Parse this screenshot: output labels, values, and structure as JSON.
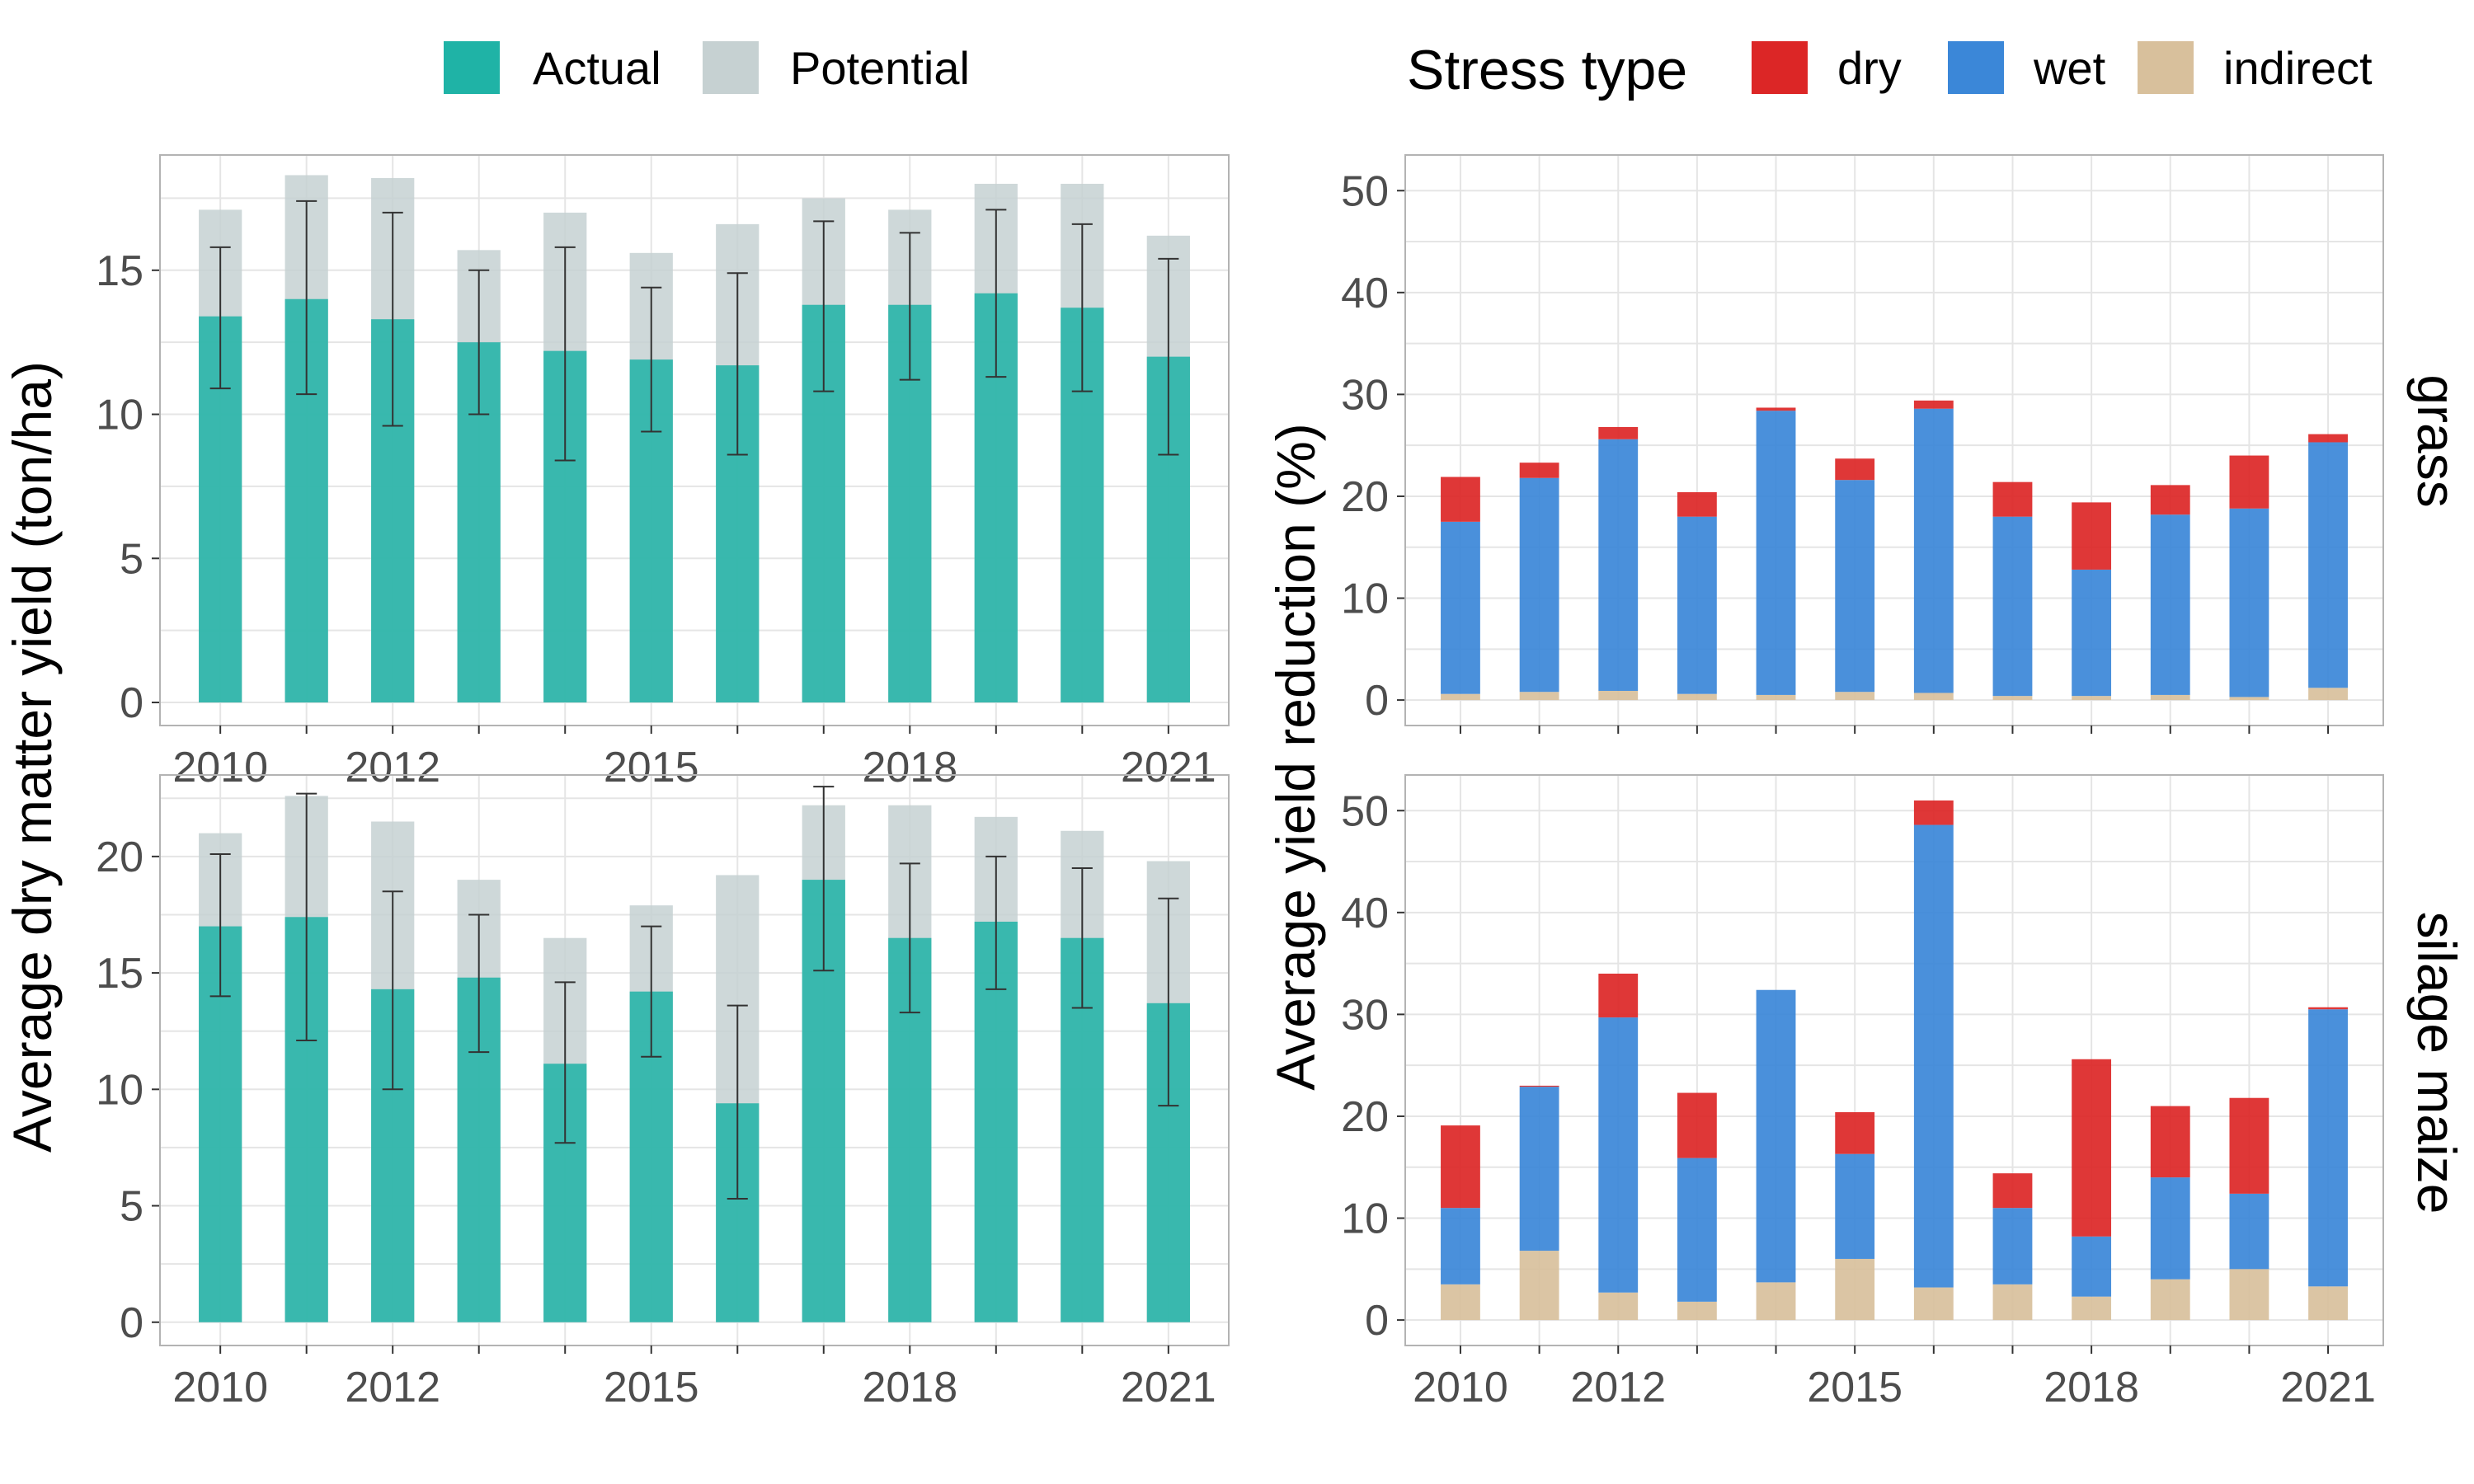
{
  "colors": {
    "actual": "#1fb3a6",
    "potential": "#c6d1d2",
    "dry": "#dc2626",
    "wet": "#3b87d8",
    "indirect": "#d8c09c"
  },
  "legend_left": {
    "actual": "Actual",
    "potential": "Potential"
  },
  "legend_right": {
    "title": "Stress type",
    "dry": "dry",
    "wet": "wet",
    "indirect": "indirect"
  },
  "chart_data": [
    {
      "type": "bar",
      "id": "grass-yield",
      "ylabel": "Average dry matter yield (ton/ha)",
      "x": [
        2010,
        2011,
        2012,
        2013,
        2014,
        2015,
        2016,
        2017,
        2018,
        2019,
        2020,
        2021
      ],
      "x_ticks": [
        "2010",
        "2012",
        "2015",
        "2018",
        "2021"
      ],
      "ylim": [
        -0.8,
        19
      ],
      "y_ticks": [
        "0",
        "5",
        "10",
        "15"
      ],
      "series": [
        {
          "name": "Actual",
          "values": [
            13.4,
            14.0,
            13.3,
            12.5,
            12.2,
            11.9,
            11.7,
            13.8,
            13.8,
            14.2,
            13.7,
            12.0
          ],
          "error_low": [
            10.9,
            10.7,
            9.6,
            10.0,
            8.4,
            9.4,
            8.6,
            10.8,
            11.2,
            11.3,
            10.8,
            8.6
          ],
          "error_high": [
            15.8,
            17.4,
            17.0,
            15.0,
            15.8,
            14.4,
            14.9,
            16.7,
            16.3,
            17.1,
            16.6,
            15.4
          ]
        },
        {
          "name": "Potential",
          "values": [
            17.1,
            18.3,
            18.2,
            15.7,
            17.0,
            15.6,
            16.6,
            17.5,
            17.1,
            18.0,
            18.0,
            16.2
          ]
        }
      ]
    },
    {
      "type": "bar",
      "id": "maize-yield",
      "ylabel": "Average dry matter yield (ton/ha)",
      "x": [
        2010,
        2011,
        2012,
        2013,
        2014,
        2015,
        2016,
        2017,
        2018,
        2019,
        2020,
        2021
      ],
      "x_ticks": [
        "2010",
        "2012",
        "2015",
        "2018",
        "2021"
      ],
      "ylim": [
        -1.0,
        23.5
      ],
      "y_ticks": [
        "0",
        "5",
        "10",
        "15",
        "20"
      ],
      "series": [
        {
          "name": "Actual",
          "values": [
            17.0,
            17.4,
            14.3,
            14.8,
            11.1,
            14.2,
            9.4,
            19.0,
            16.5,
            17.2,
            16.5,
            13.7
          ],
          "error_low": [
            14.0,
            12.1,
            10.0,
            11.6,
            7.7,
            11.4,
            5.3,
            15.1,
            13.3,
            14.3,
            13.5,
            9.3
          ],
          "error_high": [
            20.1,
            22.7,
            18.5,
            17.5,
            14.6,
            17.0,
            13.6,
            23.0,
            19.7,
            20.0,
            19.5,
            18.2
          ]
        },
        {
          "name": "Potential",
          "values": [
            21.0,
            22.6,
            21.5,
            19.0,
            16.5,
            17.9,
            19.2,
            22.2,
            22.2,
            21.7,
            21.1,
            19.8
          ]
        }
      ]
    },
    {
      "type": "bar",
      "id": "grass-reduction",
      "stacked": true,
      "facet": "grass",
      "ylabel": "Average yield reduction (%)",
      "x": [
        2010,
        2011,
        2012,
        2013,
        2014,
        2015,
        2016,
        2017,
        2018,
        2019,
        2020,
        2021
      ],
      "x_ticks": [
        "2010",
        "2012",
        "2015",
        "2018",
        "2021"
      ],
      "ylim": [
        -2.5,
        53.5
      ],
      "y_ticks": [
        "0",
        "10",
        "20",
        "30",
        "40",
        "50"
      ],
      "series": [
        {
          "name": "indirect",
          "values": [
            0.6,
            0.8,
            0.9,
            0.6,
            0.5,
            0.8,
            0.7,
            0.4,
            0.4,
            0.5,
            0.3,
            1.2
          ]
        },
        {
          "name": "wet",
          "values": [
            16.9,
            21.0,
            24.7,
            17.4,
            27.9,
            20.8,
            27.9,
            17.6,
            12.4,
            17.7,
            18.5,
            24.1
          ]
        },
        {
          "name": "dry",
          "values": [
            4.4,
            1.5,
            1.2,
            2.4,
            0.3,
            2.1,
            0.8,
            3.4,
            6.6,
            2.9,
            5.2,
            0.8
          ]
        }
      ]
    },
    {
      "type": "bar",
      "id": "maize-reduction",
      "stacked": true,
      "facet": "silage maize",
      "ylabel": "Average yield reduction (%)",
      "x": [
        2010,
        2011,
        2012,
        2013,
        2014,
        2015,
        2016,
        2017,
        2018,
        2019,
        2020,
        2021
      ],
      "x_ticks": [
        "2010",
        "2012",
        "2015",
        "2018",
        "2021"
      ],
      "ylim": [
        -2.5,
        53.5
      ],
      "y_ticks": [
        "0",
        "10",
        "20",
        "30",
        "40",
        "50"
      ],
      "series": [
        {
          "name": "indirect",
          "values": [
            3.5,
            6.8,
            2.7,
            1.8,
            3.7,
            6.0,
            3.2,
            3.5,
            2.3,
            4.0,
            5.0,
            3.3
          ]
        },
        {
          "name": "wet",
          "values": [
            7.5,
            16.1,
            27.0,
            14.1,
            28.7,
            10.3,
            45.4,
            7.5,
            5.9,
            10.0,
            7.4,
            27.2
          ]
        },
        {
          "name": "dry",
          "values": [
            8.1,
            0.1,
            4.3,
            6.4,
            0.0,
            4.1,
            2.4,
            3.4,
            17.4,
            7.0,
            9.4,
            0.2
          ]
        }
      ]
    }
  ]
}
